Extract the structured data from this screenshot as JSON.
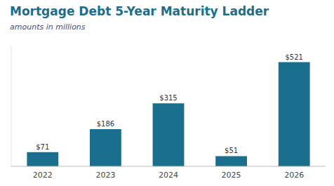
{
  "chart_data": {
    "type": "bar",
    "title": "Mortgage Debt 5-Year Maturity Ladder",
    "subtitle": "amounts in millions",
    "categories": [
      "2022",
      "2023",
      "2024",
      "2025",
      "2026"
    ],
    "values": [
      71,
      186,
      315,
      51,
      521
    ],
    "value_labels": [
      "$71",
      "$186",
      "$315",
      "$51",
      "$521"
    ],
    "data_labels": true,
    "color": "#1a6e8e",
    "ylim": [
      0,
      600
    ],
    "grid": false,
    "tick_labels": "x"
  }
}
